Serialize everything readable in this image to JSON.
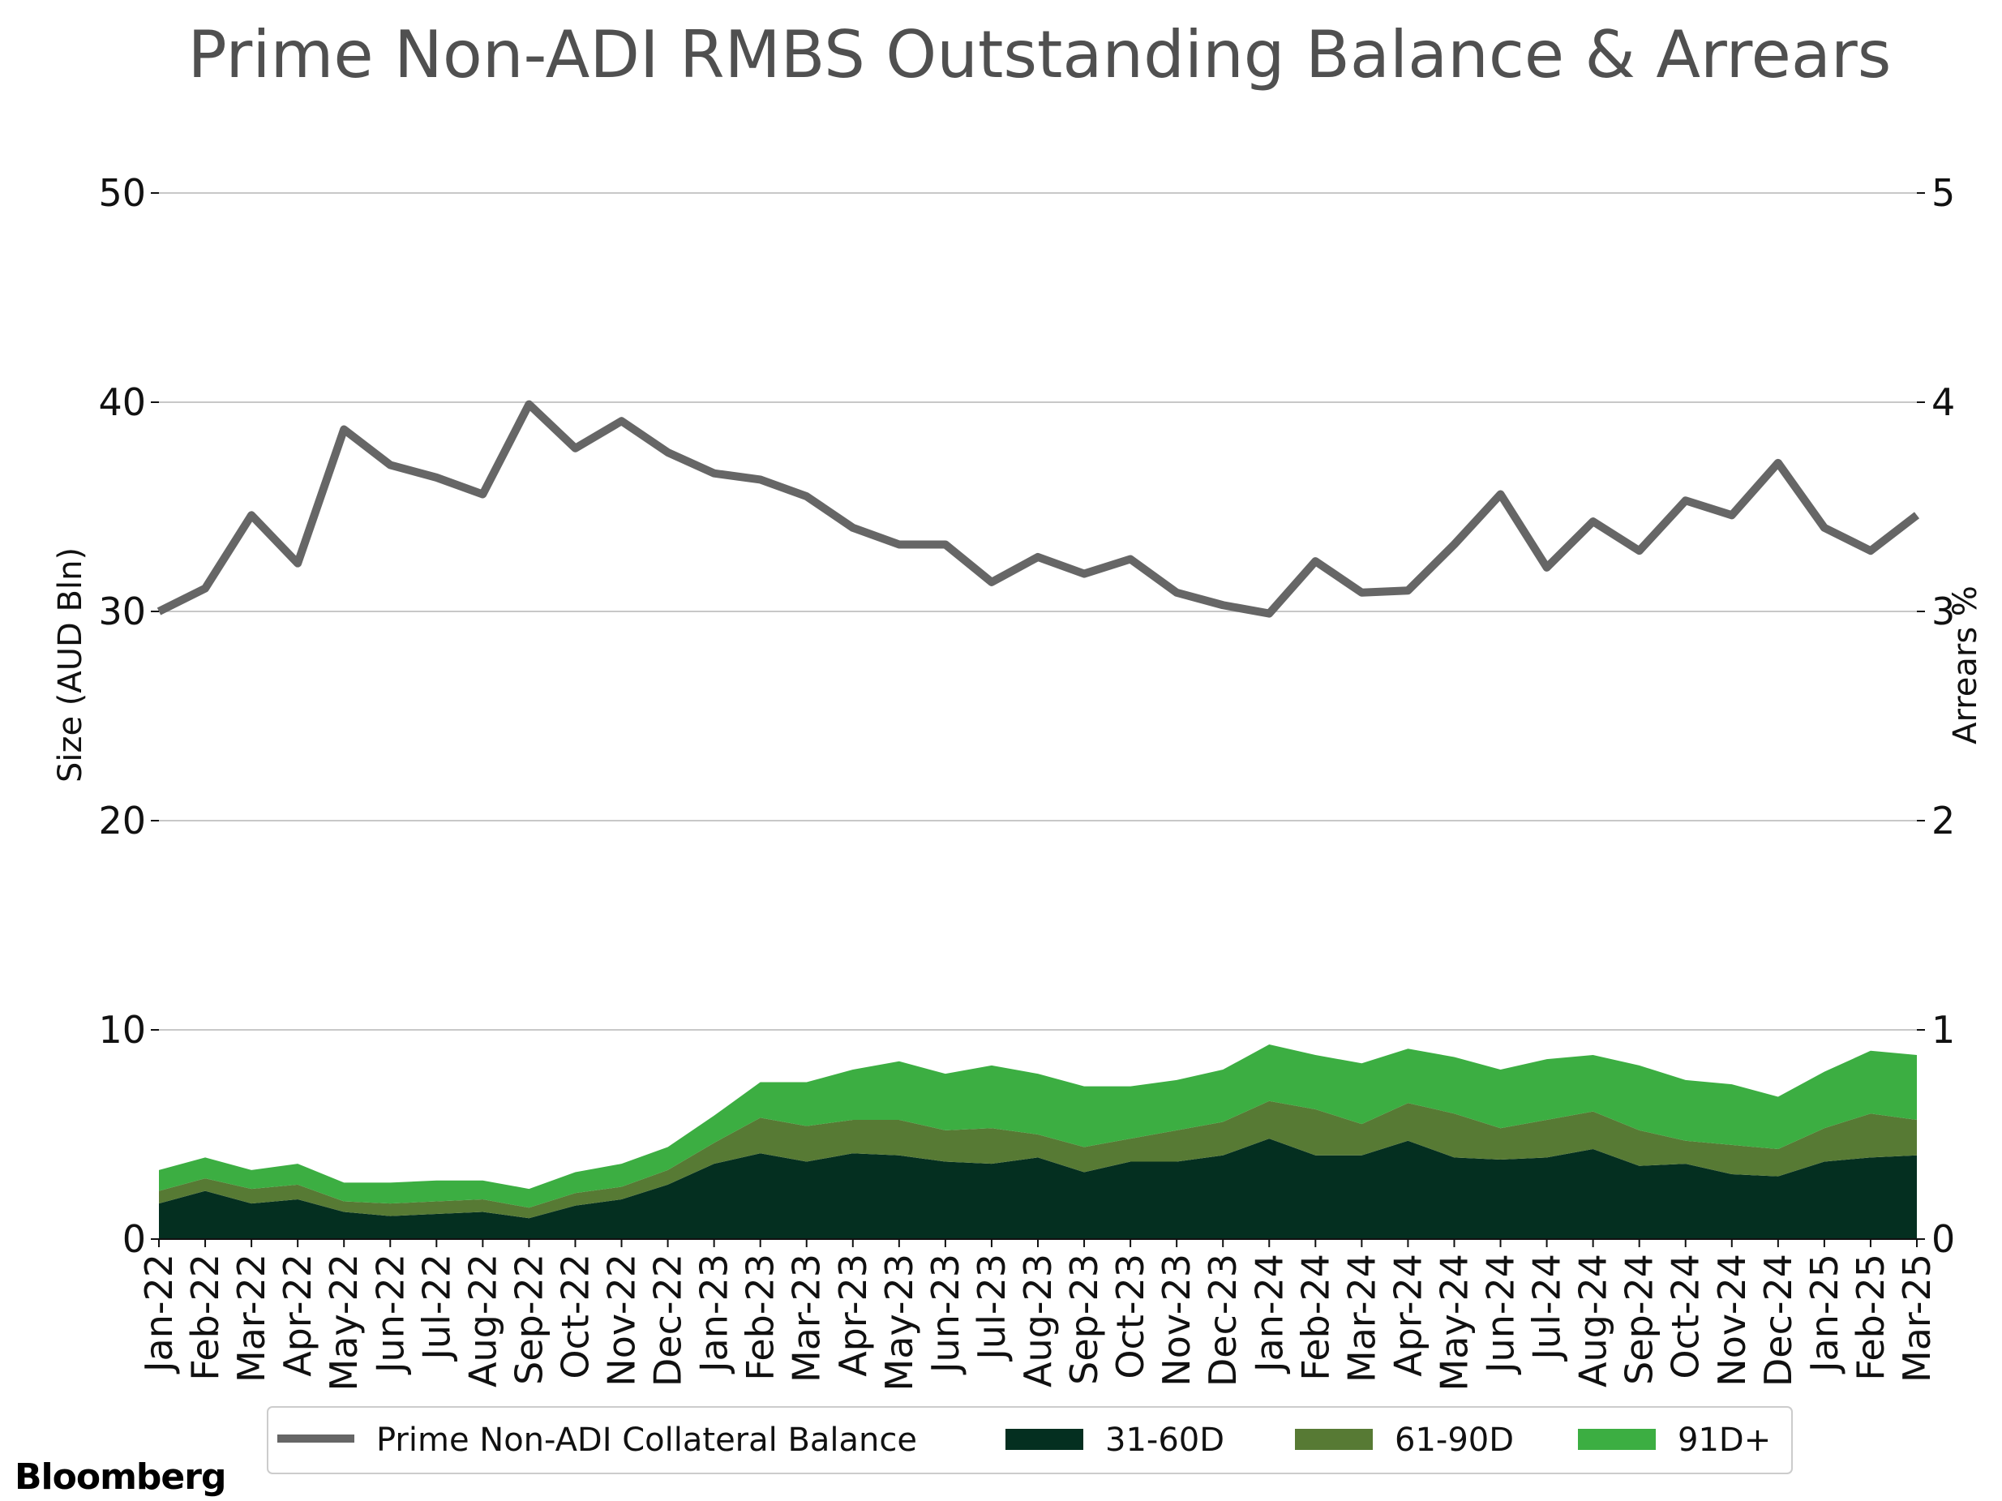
{
  "chart_data": {
    "type": "line+stacked-area",
    "title": "Prime Non-ADI RMBS Outstanding Balance & Arrears",
    "ylabel_left": "Size (AUD Bln)",
    "ylabel_right": "Arrears %",
    "ylim_left": [
      0,
      50
    ],
    "ylim_right": [
      0,
      5
    ],
    "yticks_left": [
      "0",
      "10",
      "20",
      "30",
      "40",
      "50"
    ],
    "yticks_right": [
      "0",
      "1",
      "2",
      "3",
      "4",
      "5"
    ],
    "grid": true,
    "legend_position": "bottom",
    "categories": [
      "Jan-22",
      "Feb-22",
      "Mar-22",
      "Apr-22",
      "May-22",
      "Jun-22",
      "Jul-22",
      "Aug-22",
      "Sep-22",
      "Oct-22",
      "Nov-22",
      "Dec-22",
      "Jan-23",
      "Feb-23",
      "Mar-23",
      "Apr-23",
      "May-23",
      "Jun-23",
      "Jul-23",
      "Aug-23",
      "Sep-23",
      "Oct-23",
      "Nov-23",
      "Dec-23",
      "Jan-24",
      "Feb-24",
      "Mar-24",
      "Apr-24",
      "May-24",
      "Jun-24",
      "Jul-24",
      "Aug-24",
      "Sep-24",
      "Oct-24",
      "Nov-24",
      "Dec-24",
      "Jan-25",
      "Feb-25",
      "Mar-25"
    ],
    "line_series": {
      "name": "Prime Non-ADI Collateral Balance",
      "axis": "left",
      "color": "#666666",
      "values": [
        30.0,
        31.1,
        34.6,
        32.3,
        38.7,
        37.0,
        36.4,
        35.6,
        39.9,
        37.8,
        39.1,
        37.6,
        36.6,
        36.3,
        35.5,
        34.0,
        33.2,
        33.2,
        31.4,
        32.6,
        31.8,
        32.5,
        30.9,
        30.3,
        29.9,
        32.4,
        30.9,
        31.0,
        33.2,
        35.6,
        32.1,
        34.3,
        32.9,
        35.3,
        34.6,
        37.1,
        34.0,
        32.9,
        34.6
      ]
    },
    "area_series": [
      {
        "name": "31-60D",
        "axis": "right",
        "color": "#042f20",
        "values": [
          0.17,
          0.23,
          0.17,
          0.19,
          0.13,
          0.11,
          0.12,
          0.13,
          0.1,
          0.16,
          0.19,
          0.26,
          0.36,
          0.41,
          0.37,
          0.41,
          0.4,
          0.37,
          0.36,
          0.39,
          0.32,
          0.37,
          0.37,
          0.4,
          0.48,
          0.4,
          0.4,
          0.47,
          0.39,
          0.38,
          0.39,
          0.43,
          0.35,
          0.36,
          0.31,
          0.3,
          0.37,
          0.39,
          0.4
        ]
      },
      {
        "name": "61-90D",
        "axis": "right",
        "color": "#577a34",
        "values": [
          0.06,
          0.06,
          0.07,
          0.07,
          0.05,
          0.06,
          0.06,
          0.06,
          0.05,
          0.06,
          0.06,
          0.07,
          0.1,
          0.17,
          0.17,
          0.16,
          0.17,
          0.15,
          0.17,
          0.11,
          0.12,
          0.11,
          0.15,
          0.16,
          0.18,
          0.22,
          0.15,
          0.18,
          0.21,
          0.15,
          0.18,
          0.18,
          0.17,
          0.11,
          0.14,
          0.13,
          0.16,
          0.21,
          0.17
        ]
      },
      {
        "name": "91D+",
        "axis": "right",
        "color": "#3cae42",
        "values": [
          0.1,
          0.1,
          0.09,
          0.1,
          0.09,
          0.1,
          0.1,
          0.09,
          0.09,
          0.1,
          0.11,
          0.11,
          0.13,
          0.17,
          0.21,
          0.24,
          0.28,
          0.27,
          0.3,
          0.29,
          0.29,
          0.25,
          0.24,
          0.25,
          0.27,
          0.26,
          0.29,
          0.26,
          0.27,
          0.28,
          0.29,
          0.27,
          0.31,
          0.29,
          0.29,
          0.25,
          0.27,
          0.3,
          0.31
        ]
      }
    ]
  },
  "legend": {
    "items": [
      "Prime Non-ADI Collateral Balance",
      "31-60D",
      "61-90D",
      "91D+"
    ]
  },
  "brand": {
    "logo_text": "Bloomberg"
  }
}
